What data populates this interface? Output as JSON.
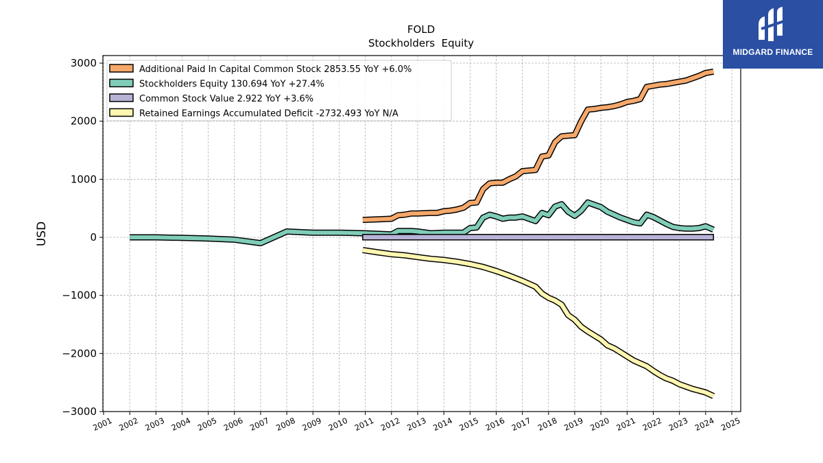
{
  "chart_data": {
    "type": "line",
    "title": "FOLD",
    "subtitle": "Stockholders  Equity",
    "ylabel": "USD",
    "xlabel": "",
    "xlim": [
      2001,
      2025
    ],
    "ylim": [
      -3000,
      3150
    ],
    "x_ticks": [
      2001,
      2002,
      2003,
      2004,
      2005,
      2006,
      2007,
      2008,
      2009,
      2010,
      2011,
      2012,
      2013,
      2014,
      2015,
      2016,
      2017,
      2018,
      2019,
      2020,
      2021,
      2022,
      2023,
      2024,
      2025
    ],
    "x_tick_labels": [
      "2001",
      "2002",
      "2003",
      "2004",
      "2005",
      "2006",
      "2007",
      "2008",
      "2009",
      "2010",
      "2011",
      "2012",
      "2013",
      "2014",
      "2015",
      "2016",
      "2017",
      "2018",
      "2019",
      "2020",
      "2021",
      "2022",
      "2023",
      "2024",
      "2025"
    ],
    "y_ticks": [
      3000,
      2000,
      1000,
      0,
      -1000,
      -2000,
      -3000
    ],
    "y_tick_labels": [
      "3000",
      "2000",
      "1000",
      "0",
      "−1000",
      "−2000",
      "−3000"
    ],
    "grid": true,
    "legend_position": "top-left",
    "series": [
      {
        "name": "Additional Paid In Capital Common Stock  2853.55 YoY +6.0%",
        "color": "#f5a86a",
        "points": [
          [
            2010.9,
            300
          ],
          [
            2011.5,
            310
          ],
          [
            2012.0,
            320
          ],
          [
            2012.25,
            380
          ],
          [
            2012.5,
            390
          ],
          [
            2012.75,
            410
          ],
          [
            2013.0,
            410
          ],
          [
            2013.5,
            420
          ],
          [
            2013.75,
            420
          ],
          [
            2014.0,
            450
          ],
          [
            2014.25,
            460
          ],
          [
            2014.5,
            480
          ],
          [
            2014.75,
            510
          ],
          [
            2015.0,
            590
          ],
          [
            2015.25,
            600
          ],
          [
            2015.5,
            830
          ],
          [
            2015.75,
            930
          ],
          [
            2016.0,
            940
          ],
          [
            2016.25,
            940
          ],
          [
            2016.5,
            1000
          ],
          [
            2016.75,
            1050
          ],
          [
            2017.0,
            1140
          ],
          [
            2017.25,
            1150
          ],
          [
            2017.5,
            1160
          ],
          [
            2017.75,
            1390
          ],
          [
            2018.0,
            1410
          ],
          [
            2018.25,
            1640
          ],
          [
            2018.5,
            1740
          ],
          [
            2018.75,
            1750
          ],
          [
            2019.0,
            1760
          ],
          [
            2019.25,
            2000
          ],
          [
            2019.5,
            2200
          ],
          [
            2019.75,
            2210
          ],
          [
            2020.0,
            2230
          ],
          [
            2020.25,
            2240
          ],
          [
            2020.5,
            2260
          ],
          [
            2020.75,
            2290
          ],
          [
            2021.0,
            2330
          ],
          [
            2021.25,
            2350
          ],
          [
            2021.5,
            2380
          ],
          [
            2021.75,
            2590
          ],
          [
            2022.0,
            2610
          ],
          [
            2022.25,
            2630
          ],
          [
            2022.5,
            2640
          ],
          [
            2022.75,
            2660
          ],
          [
            2023.0,
            2680
          ],
          [
            2023.25,
            2700
          ],
          [
            2023.5,
            2740
          ],
          [
            2023.75,
            2780
          ],
          [
            2024.0,
            2830
          ],
          [
            2024.3,
            2853.55
          ]
        ]
      },
      {
        "name": "Stockholders Equity  130.694 YoY +27.4%",
        "color": "#7fcdb8",
        "points": [
          [
            2002,
            0
          ],
          [
            2003,
            0
          ],
          [
            2004,
            -10
          ],
          [
            2005,
            -20
          ],
          [
            2006,
            -40
          ],
          [
            2007,
            -100
          ],
          [
            2008,
            100
          ],
          [
            2009,
            80
          ],
          [
            2010,
            80
          ],
          [
            2011,
            70
          ],
          [
            2012,
            50
          ],
          [
            2012.25,
            110
          ],
          [
            2012.5,
            110
          ],
          [
            2012.75,
            110
          ],
          [
            2013.0,
            100
          ],
          [
            2013.5,
            70
          ],
          [
            2014.0,
            80
          ],
          [
            2014.25,
            80
          ],
          [
            2014.5,
            80
          ],
          [
            2014.75,
            80
          ],
          [
            2015.0,
            160
          ],
          [
            2015.25,
            170
          ],
          [
            2015.5,
            340
          ],
          [
            2015.75,
            390
          ],
          [
            2016.0,
            360
          ],
          [
            2016.25,
            320
          ],
          [
            2016.5,
            340
          ],
          [
            2016.75,
            340
          ],
          [
            2017.0,
            360
          ],
          [
            2017.25,
            320
          ],
          [
            2017.5,
            280
          ],
          [
            2017.75,
            420
          ],
          [
            2018.0,
            380
          ],
          [
            2018.25,
            530
          ],
          [
            2018.5,
            570
          ],
          [
            2018.75,
            440
          ],
          [
            2019.0,
            370
          ],
          [
            2019.25,
            460
          ],
          [
            2019.5,
            600
          ],
          [
            2019.75,
            560
          ],
          [
            2020.0,
            520
          ],
          [
            2020.25,
            440
          ],
          [
            2020.5,
            390
          ],
          [
            2020.75,
            340
          ],
          [
            2021.0,
            300
          ],
          [
            2021.25,
            260
          ],
          [
            2021.5,
            240
          ],
          [
            2021.75,
            390
          ],
          [
            2022.0,
            350
          ],
          [
            2022.25,
            290
          ],
          [
            2022.5,
            230
          ],
          [
            2022.75,
            180
          ],
          [
            2023.0,
            160
          ],
          [
            2023.25,
            150
          ],
          [
            2023.5,
            150
          ],
          [
            2023.75,
            160
          ],
          [
            2024.0,
            190
          ],
          [
            2024.3,
            130.694
          ]
        ]
      },
      {
        "name": "Common Stock Value  2.922 YoY +3.6%",
        "color": "#b7b3d6",
        "points": [
          [
            2010.9,
            2.9
          ],
          [
            2012,
            2.9
          ],
          [
            2014,
            2.9
          ],
          [
            2016,
            2.9
          ],
          [
            2018,
            2.9
          ],
          [
            2020,
            2.9
          ],
          [
            2022,
            2.9
          ],
          [
            2024.3,
            2.922
          ]
        ]
      },
      {
        "name": "Retained Earnings Accumulated Deficit  -2732.493 YoY N/A",
        "color": "#fff6b0",
        "points": [
          [
            2010.9,
            -220
          ],
          [
            2011.5,
            -260
          ],
          [
            2012.0,
            -290
          ],
          [
            2012.5,
            -310
          ],
          [
            2013.0,
            -340
          ],
          [
            2013.5,
            -370
          ],
          [
            2014.0,
            -390
          ],
          [
            2014.5,
            -420
          ],
          [
            2015.0,
            -460
          ],
          [
            2015.5,
            -510
          ],
          [
            2016.0,
            -580
          ],
          [
            2016.5,
            -660
          ],
          [
            2017.0,
            -750
          ],
          [
            2017.25,
            -800
          ],
          [
            2017.5,
            -850
          ],
          [
            2017.75,
            -970
          ],
          [
            2018.0,
            -1040
          ],
          [
            2018.25,
            -1090
          ],
          [
            2018.5,
            -1160
          ],
          [
            2018.75,
            -1340
          ],
          [
            2019.0,
            -1420
          ],
          [
            2019.25,
            -1540
          ],
          [
            2019.5,
            -1620
          ],
          [
            2019.75,
            -1690
          ],
          [
            2020.0,
            -1760
          ],
          [
            2020.25,
            -1860
          ],
          [
            2020.5,
            -1910
          ],
          [
            2020.75,
            -1980
          ],
          [
            2021.0,
            -2050
          ],
          [
            2021.25,
            -2120
          ],
          [
            2021.5,
            -2170
          ],
          [
            2021.75,
            -2220
          ],
          [
            2022.0,
            -2300
          ],
          [
            2022.25,
            -2370
          ],
          [
            2022.5,
            -2430
          ],
          [
            2022.75,
            -2470
          ],
          [
            2023.0,
            -2530
          ],
          [
            2023.25,
            -2570
          ],
          [
            2023.5,
            -2610
          ],
          [
            2023.75,
            -2640
          ],
          [
            2024.0,
            -2670
          ],
          [
            2024.3,
            -2732.493
          ]
        ]
      }
    ]
  },
  "logo": {
    "text": "MIDGARD FINANCE",
    "background": "#2a4fa3",
    "icon": "midgard-logo-icon"
  }
}
